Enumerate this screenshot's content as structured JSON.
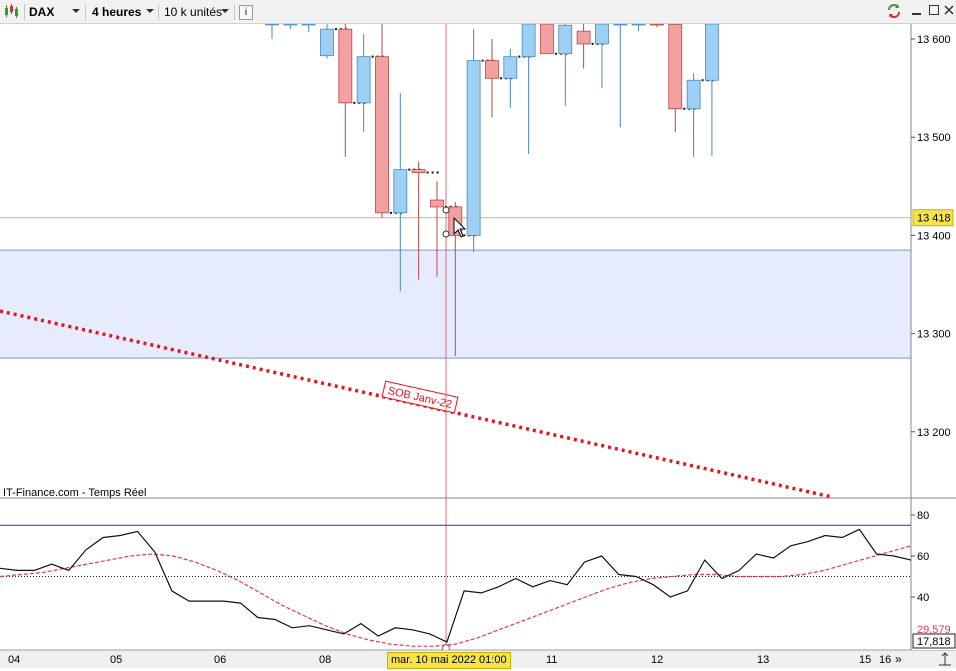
{
  "toolbar": {
    "instrument": "DAX",
    "timeframe": "4 heures",
    "units": "10 k unités",
    "info_icon": "i"
  },
  "source_label": "IT-Finance.com - Temps Réel",
  "annotation": "SOB Janv-22",
  "colors": {
    "bullish": "#9ecff5",
    "bearish": "#f2a0a0",
    "zone_fill": "#e6ecfd",
    "trendline": "#e8141c",
    "price_line": "#e8a48c"
  },
  "chart_data": [
    {
      "type": "candlestick",
      "instrument": "DAX",
      "ylim": [
        13130,
        13625
      ],
      "y_ticks": [
        13600,
        13500,
        13400,
        13300,
        13200
      ],
      "y_tick_labels": [
        "13 600",
        "13 500",
        "13 400",
        "13 300",
        "13 200"
      ],
      "current_price": 13418,
      "current_price_label": "13 418",
      "zone": [
        13275,
        13385
      ],
      "trendline_label": "SOB Janv-22",
      "candles": [
        {
          "o": 13625,
          "h": 13625,
          "l": 13600,
          "c": 13625
        },
        {
          "o": 13625,
          "h": 13625,
          "l": 13610,
          "c": 13625
        },
        {
          "o": 13625,
          "h": 13625,
          "l": 13607,
          "c": 13625
        },
        {
          "o": 13583,
          "h": 13625,
          "l": 13580,
          "c": 13610
        },
        {
          "o": 13610,
          "h": 13625,
          "l": 13480,
          "c": 13535
        },
        {
          "o": 13535,
          "h": 13605,
          "l": 13505,
          "c": 13582
        },
        {
          "o": 13582,
          "h": 13625,
          "l": 13418,
          "c": 13423
        },
        {
          "o": 13423,
          "h": 13545,
          "l": 13343,
          "c": 13467
        },
        {
          "o": 13467,
          "h": 13475,
          "l": 13355,
          "c": 13464
        },
        {
          "o": 13436,
          "h": 13455,
          "l": 13358,
          "c": 13429
        },
        {
          "o": 13429,
          "h": 13434,
          "l": 13277,
          "c": 13400
        },
        {
          "o": 13400,
          "h": 13610,
          "l": 13383,
          "c": 13578
        },
        {
          "o": 13578,
          "h": 13600,
          "l": 13520,
          "c": 13560
        },
        {
          "o": 13560,
          "h": 13590,
          "l": 13530,
          "c": 13582
        },
        {
          "o": 13582,
          "h": 13625,
          "l": 13483,
          "c": 13625
        },
        {
          "o": 13625,
          "h": 13625,
          "l": 13585,
          "c": 13585
        },
        {
          "o": 13585,
          "h": 13625,
          "l": 13532,
          "c": 13614
        },
        {
          "o": 13608,
          "h": 13625,
          "l": 13570,
          "c": 13595
        },
        {
          "o": 13595,
          "h": 13625,
          "l": 13550,
          "c": 13625
        },
        {
          "o": 13625,
          "h": 13625,
          "l": 13510,
          "c": 13625
        },
        {
          "o": 13625,
          "h": 13625,
          "l": 13608,
          "c": 13625
        },
        {
          "o": 13625,
          "h": 13625,
          "l": 13612,
          "c": 13615
        },
        {
          "o": 13615,
          "h": 13625,
          "l": 13505,
          "c": 13529
        },
        {
          "o": 13529,
          "h": 13565,
          "l": 13480,
          "c": 13558
        },
        {
          "o": 13558,
          "h": 13625,
          "l": 13481,
          "c": 13625
        }
      ]
    },
    {
      "type": "line",
      "ylim": [
        13,
        87
      ],
      "y_ticks": [
        80,
        60,
        40
      ],
      "levels": [
        75,
        50,
        14
      ],
      "series": [
        {
          "values": [
            54,
            53,
            53,
            56,
            53,
            63,
            69,
            70,
            72,
            62,
            43,
            38,
            38,
            38,
            37,
            30,
            29,
            25,
            26,
            24,
            22,
            27,
            21,
            25,
            24,
            22,
            18,
            43,
            42,
            45,
            49,
            45,
            48,
            46,
            57,
            60,
            51,
            50,
            46,
            40,
            43,
            58,
            49,
            53,
            61,
            59,
            65,
            67,
            70,
            69,
            73,
            61,
            60,
            58
          ],
          "last_label": "17,818"
        },
        {
          "values": [
            50,
            51,
            52,
            54,
            56,
            58,
            60,
            61,
            60,
            57,
            53,
            48,
            42,
            36,
            31,
            26,
            22,
            19,
            17,
            16,
            16,
            17,
            20,
            24,
            28,
            32,
            36,
            40,
            44,
            47,
            49,
            50,
            51,
            51,
            50,
            50,
            50,
            51,
            53,
            56,
            59,
            62,
            65
          ],
          "last_label": "29,579"
        }
      ]
    }
  ],
  "x_axis": {
    "labels": [
      "04",
      "05",
      "06",
      "08",
      "11",
      "12",
      "13",
      "15",
      "16"
    ],
    "cursor_date": "mar. 10 mai 2022 01:00"
  }
}
